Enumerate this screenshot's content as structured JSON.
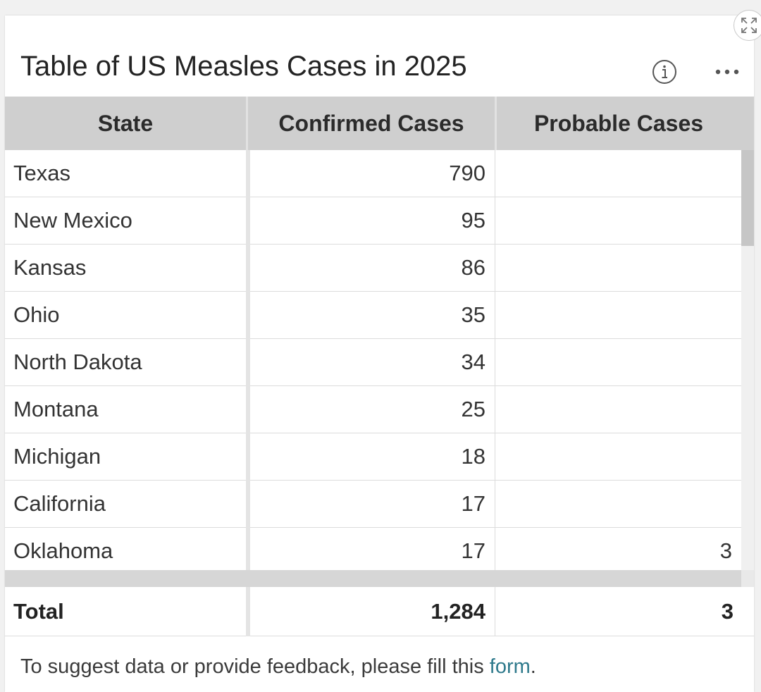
{
  "title": "Table of US Measles Cases in 2025",
  "toolbar": {
    "info_icon": "info-icon",
    "more_icon": "more-horizontal-icon",
    "expand_icon": "expand-icon"
  },
  "table": {
    "columns": [
      "State",
      "Confirmed Cases",
      "Probable Cases"
    ],
    "rows": [
      {
        "state": "Texas",
        "confirmed": "790",
        "probable": ""
      },
      {
        "state": "New Mexico",
        "confirmed": "95",
        "probable": ""
      },
      {
        "state": "Kansas",
        "confirmed": "86",
        "probable": ""
      },
      {
        "state": "Ohio",
        "confirmed": "35",
        "probable": ""
      },
      {
        "state": "North Dakota",
        "confirmed": "34",
        "probable": ""
      },
      {
        "state": "Montana",
        "confirmed": "25",
        "probable": ""
      },
      {
        "state": "Michigan",
        "confirmed": "18",
        "probable": ""
      },
      {
        "state": "California",
        "confirmed": "17",
        "probable": ""
      },
      {
        "state": "Oklahoma",
        "confirmed": "17",
        "probable": "3"
      }
    ],
    "total": {
      "label": "Total",
      "confirmed": "1,284",
      "probable": "3"
    }
  },
  "footer": {
    "text_before": "To suggest data or provide feedback, please fill this ",
    "link_text": "form",
    "text_after": "."
  },
  "colors": {
    "header_bg": "#cfcfcf",
    "link": "#2f7a8c"
  }
}
